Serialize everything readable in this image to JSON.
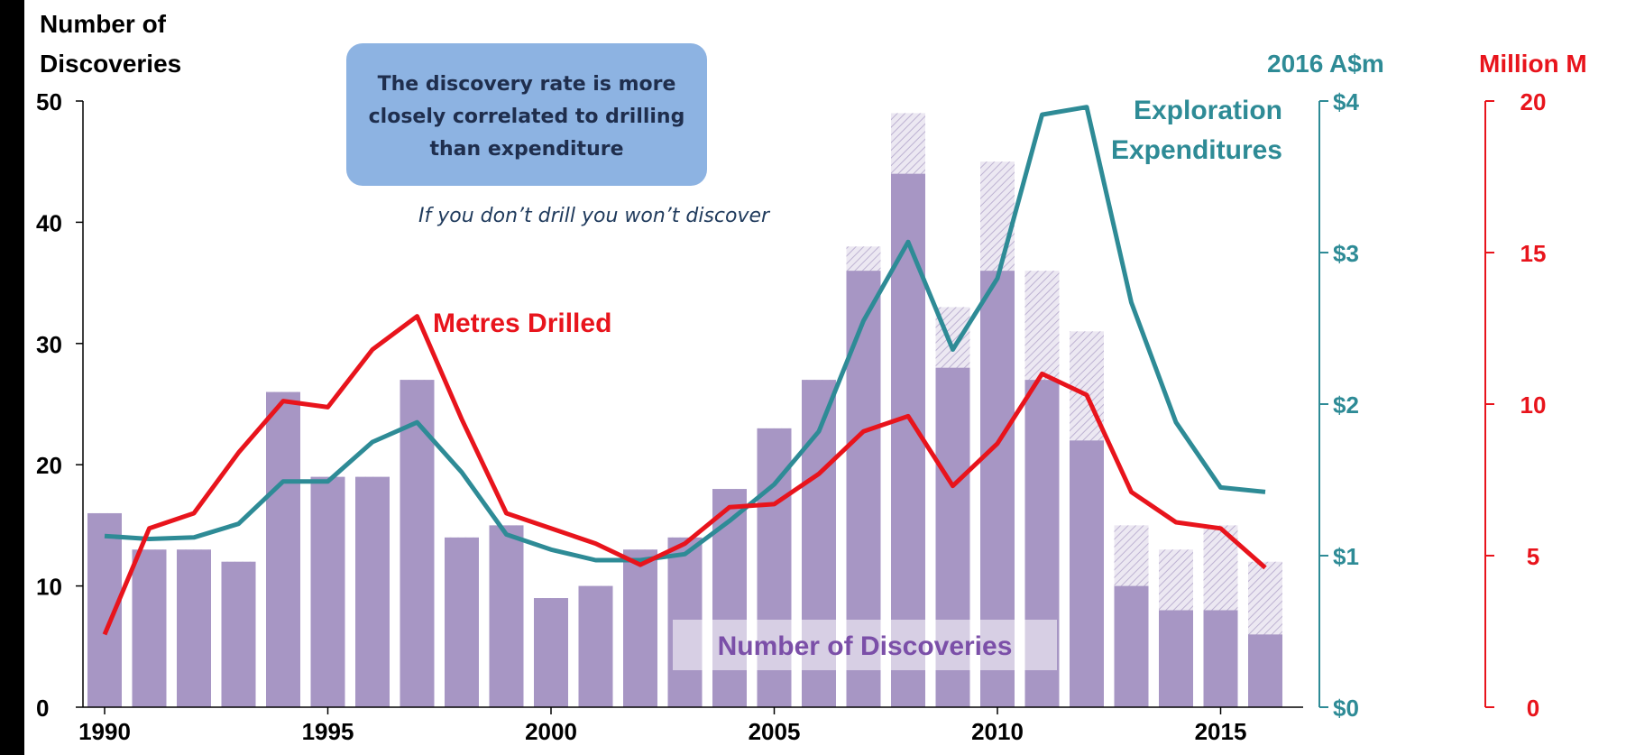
{
  "chart_data": {
    "type": "bar",
    "x": [
      1990,
      1991,
      1992,
      1993,
      1994,
      1995,
      1996,
      1997,
      1998,
      1999,
      2000,
      2001,
      2002,
      2003,
      2004,
      2005,
      2006,
      2007,
      2008,
      2009,
      2010,
      2011,
      2012,
      2013,
      2014,
      2015,
      2016
    ],
    "x_ticks": [
      "1990",
      "1995",
      "2000",
      "2005",
      "2010",
      "2015"
    ],
    "left_axis": {
      "title_line1": "Number of",
      "title_line2": "Discoveries",
      "ylim": [
        0,
        50
      ],
      "ticks": [
        "0",
        "10",
        "20",
        "30",
        "40",
        "50"
      ]
    },
    "right_axis_1": {
      "title": "2016 A$m",
      "ylim": [
        0,
        4
      ],
      "ticks": [
        "$0",
        "$1",
        "$2",
        "$3",
        "$4"
      ],
      "color": "#2E8B96"
    },
    "right_axis_2": {
      "title": "Million M",
      "ylim": [
        0,
        20
      ],
      "ticks": [
        "0",
        "5",
        "10",
        "15",
        "20"
      ],
      "color": "#E8141C"
    },
    "series": [
      {
        "name": "Number of Discoveries",
        "kind": "bar",
        "axis": "left",
        "color": "#A796C4",
        "values": [
          16,
          13,
          13,
          12,
          26,
          19,
          19,
          27,
          14,
          15,
          9,
          10,
          13,
          14,
          18,
          23,
          27,
          36,
          44,
          28,
          36,
          27,
          22,
          10,
          8,
          8,
          6
        ]
      },
      {
        "kind": "bar-hatched",
        "axis": "left",
        "color": "#D6CFE2",
        "values": [
          16,
          13,
          13,
          12,
          26,
          19,
          19,
          27,
          14,
          15,
          9,
          10,
          13,
          14,
          18,
          23,
          27,
          38,
          49,
          33,
          45,
          36,
          31,
          15,
          13,
          15,
          12
        ]
      },
      {
        "name": "Exploration Expenditures",
        "kind": "line",
        "axis": "right_axis_1",
        "color": "#2E8B96",
        "values": [
          1.13,
          1.11,
          1.12,
          1.21,
          1.49,
          1.49,
          1.75,
          1.88,
          1.55,
          1.14,
          1.04,
          0.97,
          0.97,
          1.01,
          1.23,
          1.47,
          1.82,
          2.55,
          3.07,
          2.36,
          2.83,
          3.91,
          3.96,
          2.67,
          1.88,
          1.45,
          1.42
        ]
      },
      {
        "name": "Metres Drilled",
        "kind": "line",
        "axis": "right_axis_2",
        "color": "#E8141C",
        "values": [
          2.4,
          5.9,
          6.4,
          8.4,
          10.1,
          9.9,
          11.8,
          12.9,
          9.5,
          6.4,
          5.9,
          5.4,
          4.7,
          5.4,
          6.6,
          6.7,
          7.7,
          9.1,
          9.6,
          7.3,
          8.7,
          11.0,
          10.3,
          7.1,
          6.1,
          5.9,
          4.6
        ]
      }
    ],
    "annotations": {
      "box_text_1": "The discovery rate is more",
      "box_text_2": "closely correlated to drilling",
      "box_text_3": "than expenditure",
      "italic_note": "If you don’t drill you won’t discover",
      "label_metres": "Metres Drilled",
      "label_expl_1": "Exploration",
      "label_expl_2": "Expenditures",
      "label_discoveries": "Number of Discoveries"
    }
  }
}
